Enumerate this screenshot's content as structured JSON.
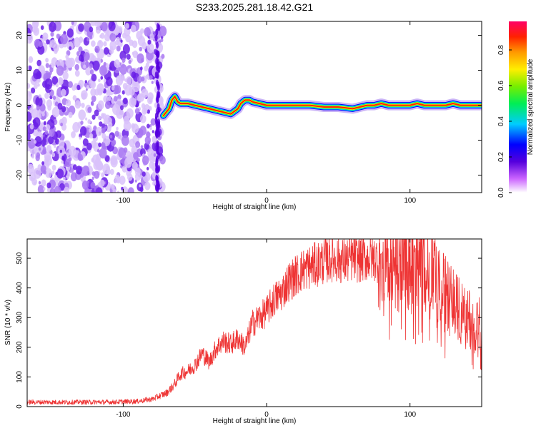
{
  "title": "S233.2025.281.18.42.G21",
  "chart_data": [
    {
      "type": "heatmap",
      "xlabel": "Height of straight line (km)",
      "ylabel": "Frequency (Hz)",
      "xlim": [
        -167,
        150
      ],
      "ylim": [
        -25,
        24
      ],
      "xticks": [
        -100,
        0,
        100
      ],
      "yticks": [
        -20,
        -10,
        0,
        10,
        20
      ],
      "colorbar": {
        "label": "Normalized spectral amplitude",
        "ticks": [
          0.0,
          0.2,
          0.4,
          0.6,
          0.8
        ],
        "range": [
          0,
          0.96
        ]
      },
      "noise_region_x": [
        -167,
        -72
      ],
      "signal_trace": {
        "x": [
          -72,
          -70,
          -68,
          -66,
          -64,
          -62,
          -60,
          -55,
          -50,
          -45,
          -40,
          -35,
          -30,
          -25,
          -20,
          -18,
          -15,
          -12,
          -10,
          -5,
          0,
          10,
          20,
          30,
          40,
          50,
          60,
          65,
          70,
          75,
          80,
          85,
          90,
          95,
          100,
          105,
          110,
          115,
          120,
          125,
          130,
          135,
          140,
          145,
          150
        ],
        "y": [
          -3,
          -2,
          -1,
          1.5,
          2.5,
          1,
          0.5,
          0.5,
          0,
          -0.5,
          -1,
          -1.5,
          -2,
          -2.5,
          -1,
          0.5,
          1.5,
          1.5,
          1,
          0.5,
          0,
          0,
          0,
          0,
          -0.5,
          -0.5,
          -1,
          -0.5,
          0,
          0,
          0.5,
          0,
          0,
          0,
          0,
          0.5,
          0,
          0,
          0,
          0,
          0.5,
          0,
          0,
          0,
          0
        ]
      }
    },
    {
      "type": "line",
      "xlabel": "Height of straight line (km)",
      "ylabel": "SNR (10 * v/v)",
      "xlim": [
        -167,
        150
      ],
      "ylim": [
        0,
        565
      ],
      "xticks": [
        -100,
        0,
        100
      ],
      "yticks": [
        0,
        100,
        200,
        300,
        400,
        500
      ],
      "color": "#ee3333",
      "x": [
        -167,
        -150,
        -130,
        -110,
        -90,
        -80,
        -75,
        -70,
        -65,
        -60,
        -55,
        -50,
        -45,
        -40,
        -35,
        -30,
        -25,
        -20,
        -15,
        -10,
        -5,
        0,
        5,
        10,
        15,
        20,
        25,
        30,
        35,
        40,
        45,
        50,
        55,
        60,
        65,
        70,
        75,
        80,
        85,
        90,
        95,
        100,
        105,
        110,
        115,
        120,
        125,
        130,
        135,
        140,
        145,
        150
      ],
      "y": [
        15,
        15,
        15,
        15,
        18,
        25,
        35,
        45,
        70,
        110,
        120,
        140,
        180,
        150,
        200,
        220,
        210,
        230,
        200,
        280,
        300,
        320,
        360,
        380,
        420,
        440,
        460,
        470,
        480,
        490,
        500,
        495,
        490,
        500,
        495,
        500,
        500,
        490,
        480,
        470,
        480,
        490,
        500,
        490,
        440,
        400,
        380,
        350,
        320,
        300,
        290,
        280
      ]
    }
  ]
}
